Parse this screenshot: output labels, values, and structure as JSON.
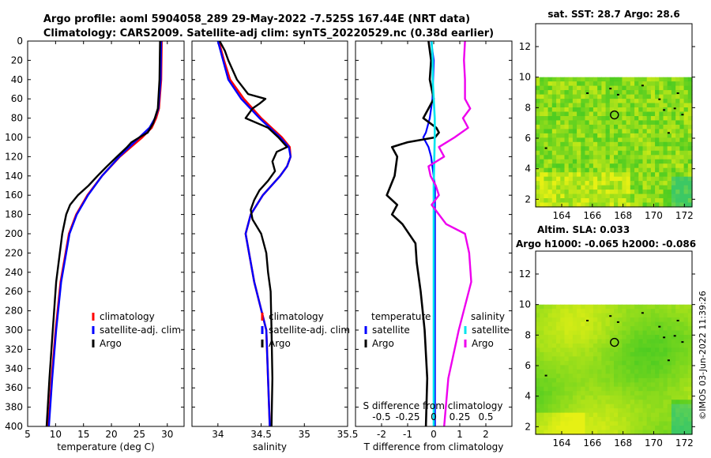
{
  "title": {
    "line1": "Argo profile: aoml 5904058_289 29-May-2022 -7.525S 167.44E (NRT data)",
    "line2": "Climatology: CARS2009. Satellite-adj clim: synTS_20220529.nc (0.38d earlier)"
  },
  "watermark": "©IMOS 03-Jun-2022 11:39:26",
  "colors": {
    "climatology": "#ff0000",
    "satellite": "#0000ff",
    "argo": "#000000",
    "sat_salinity": "#00e5ee",
    "argo_salinity": "#ee00ee"
  },
  "chart_data": [
    {
      "type": "line",
      "id": "temperature",
      "xlabel": "temperature (deg C)",
      "ylabel": "",
      "xlim": [
        5,
        33
      ],
      "ylim": [
        400,
        0
      ],
      "xticks": [
        "5",
        "10",
        "15",
        "20",
        "25",
        "30"
      ],
      "xtick_values": [
        5,
        10,
        15,
        20,
        25,
        30
      ],
      "yticks": [
        "0",
        "20",
        "40",
        "60",
        "80",
        "100",
        "120",
        "140",
        "160",
        "180",
        "200",
        "220",
        "240",
        "260",
        "280",
        "300",
        "320",
        "340",
        "360",
        "380",
        "400"
      ],
      "ytick_values": [
        0,
        20,
        40,
        60,
        80,
        100,
        120,
        140,
        160,
        180,
        200,
        220,
        240,
        260,
        280,
        300,
        320,
        340,
        360,
        380,
        400
      ],
      "legend": [
        "climatology",
        "satellite-adj. clim",
        "Argo"
      ],
      "series": [
        {
          "name": "climatology",
          "depth": [
            0,
            40,
            70,
            80,
            90,
            100,
            110,
            120,
            140,
            160,
            180,
            200,
            250,
            300,
            350,
            400
          ],
          "values": [
            29.0,
            28.9,
            28.5,
            28.0,
            27.2,
            25.5,
            23.5,
            21.5,
            18.3,
            15.7,
            13.7,
            12.4,
            10.9,
            10.0,
            9.3,
            8.7
          ]
        },
        {
          "name": "satellite-adj. clim",
          "depth": [
            0,
            40,
            70,
            80,
            90,
            100,
            110,
            120,
            140,
            160,
            180,
            200,
            250,
            300,
            350,
            400
          ],
          "values": [
            28.9,
            28.8,
            28.4,
            27.8,
            26.8,
            25.0,
            23.2,
            21.4,
            18.3,
            15.8,
            13.8,
            12.5,
            11.0,
            10.1,
            9.4,
            8.8
          ]
        },
        {
          "name": "Argo",
          "depth": [
            0,
            40,
            70,
            85,
            95,
            100,
            105,
            110,
            120,
            130,
            140,
            150,
            160,
            170,
            180,
            200,
            250,
            300,
            350,
            400
          ],
          "values": [
            28.7,
            28.6,
            28.3,
            27.5,
            26.5,
            25.0,
            23.6,
            22.8,
            21.0,
            19.2,
            17.5,
            15.9,
            14.0,
            12.6,
            11.9,
            11.2,
            10.1,
            9.5,
            8.9,
            8.4
          ]
        }
      ]
    },
    {
      "type": "line",
      "id": "salinity",
      "xlabel": "salinity",
      "ylabel": "",
      "xlim": [
        33.7,
        35.5
      ],
      "ylim": [
        400,
        0
      ],
      "xticks": [
        "34",
        "34.5",
        "35",
        "35.5"
      ],
      "xtick_values": [
        34,
        34.5,
        35,
        35.5
      ],
      "legend": [
        "climatology",
        "satellite-adj. clim",
        "Argo"
      ],
      "series": [
        {
          "name": "climatology",
          "depth": [
            0,
            10,
            20,
            40,
            60,
            80,
            90,
            100,
            110,
            120,
            130,
            140,
            160,
            180,
            200,
            250,
            300,
            400
          ],
          "values": [
            34.01,
            34.04,
            34.07,
            34.14,
            34.3,
            34.5,
            34.62,
            34.74,
            34.83,
            34.84,
            34.8,
            34.72,
            34.52,
            34.38,
            34.32,
            34.42,
            34.56,
            34.6
          ]
        },
        {
          "name": "satellite-adj. clim",
          "depth": [
            0,
            10,
            20,
            40,
            60,
            80,
            90,
            100,
            110,
            120,
            130,
            140,
            160,
            180,
            200,
            250,
            300,
            400
          ],
          "values": [
            34.0,
            34.03,
            34.06,
            34.12,
            34.27,
            34.48,
            34.6,
            34.72,
            34.82,
            34.84,
            34.8,
            34.72,
            34.52,
            34.38,
            34.32,
            34.42,
            34.56,
            34.6
          ]
        },
        {
          "name": "Argo",
          "depth": [
            0,
            10,
            20,
            40,
            55,
            60,
            65,
            70,
            80,
            90,
            100,
            110,
            115,
            125,
            135,
            145,
            155,
            165,
            175,
            185,
            200,
            220,
            240,
            260,
            300,
            350,
            400
          ],
          "values": [
            34.02,
            34.08,
            34.12,
            34.22,
            34.35,
            34.55,
            34.48,
            34.4,
            34.32,
            34.58,
            34.7,
            34.8,
            34.68,
            34.63,
            34.66,
            34.58,
            34.48,
            34.42,
            34.38,
            34.4,
            34.5,
            34.56,
            34.58,
            34.61,
            34.62,
            34.63,
            34.62
          ]
        }
      ]
    },
    {
      "type": "line",
      "id": "difference",
      "xlabel": "T difference from climatology",
      "xlabel_top": "S difference from climatology",
      "xlim": [
        -3,
        3
      ],
      "ylim": [
        400,
        0
      ],
      "xticks": [
        "-2",
        "-1",
        "0",
        "1",
        "2"
      ],
      "xtick_values": [
        -2,
        -1,
        0,
        1,
        2
      ],
      "xticks_top": [
        "-0.5",
        "-0.25",
        "0",
        "0.25",
        "0.5"
      ],
      "legend_left_title": "temperature",
      "legend_right_title": "salinity",
      "legend_left": [
        "satellite",
        "Argo"
      ],
      "legend_right": [
        "satellite",
        "Argo"
      ],
      "series": [
        {
          "name": "T satellite",
          "depth": [
            0,
            20,
            60,
            80,
            95,
            100,
            110,
            120,
            150,
            200,
            300,
            400
          ],
          "values": [
            -0.1,
            0.0,
            -0.05,
            -0.15,
            -0.3,
            -0.4,
            -0.2,
            -0.1,
            0.05,
            0.05,
            0.05,
            0.05
          ]
        },
        {
          "name": "T Argo",
          "depth": [
            0,
            20,
            40,
            60,
            80,
            90,
            95,
            100,
            105,
            110,
            120,
            140,
            160,
            170,
            180,
            190,
            210,
            230,
            260,
            300,
            350,
            400
          ],
          "values": [
            -0.2,
            -0.1,
            -0.15,
            0.0,
            -0.4,
            0.1,
            0.2,
            0.05,
            -1.0,
            -1.6,
            -1.4,
            -1.5,
            -1.8,
            -1.4,
            -1.6,
            -1.2,
            -0.7,
            -0.65,
            -0.5,
            -0.35,
            -0.25,
            -0.3
          ]
        },
        {
          "name": "S satellite",
          "depth": [
            0,
            20,
            40,
            60,
            80,
            100,
            150,
            200,
            300,
            400
          ],
          "values": [
            -0.02,
            -0.01,
            -0.01,
            0.0,
            0.01,
            0.01,
            0.0,
            0.0,
            0.0,
            0.0
          ]
        },
        {
          "name": "S Argo",
          "depth": [
            0,
            20,
            40,
            60,
            70,
            80,
            90,
            100,
            110,
            120,
            130,
            140,
            150,
            160,
            170,
            180,
            190,
            200,
            220,
            250,
            300,
            350,
            400
          ],
          "values": [
            0.3,
            0.29,
            0.3,
            0.3,
            0.35,
            0.28,
            0.33,
            0.2,
            0.05,
            0.1,
            -0.05,
            -0.03,
            0.02,
            0.05,
            -0.02,
            0.05,
            0.12,
            0.3,
            0.34,
            0.36,
            0.24,
            0.14,
            0.1
          ]
        }
      ]
    },
    {
      "type": "heatmap",
      "id": "sst_map",
      "title": "sat. SST: 28.7 Argo: 28.6",
      "xlim": [
        162.3,
        172.5
      ],
      "ylim": [
        1.5,
        13.5
      ],
      "xticks": [
        "164",
        "166",
        "168",
        "170",
        "172"
      ],
      "xtick_values": [
        164,
        166,
        168,
        170,
        172
      ],
      "yticks": [
        "2",
        "4",
        "6",
        "8",
        "10",
        "12"
      ],
      "ytick_values": [
        2,
        4,
        6,
        8,
        10,
        12
      ],
      "data_top": 10,
      "argo_position": [
        167.44,
        7.525
      ]
    },
    {
      "type": "heatmap",
      "id": "sla_map",
      "title_line1": "Altim. SLA: 0.033",
      "title_line2": "Argo h1000: -0.065 h2000: -0.086",
      "xlim": [
        162.3,
        172.5
      ],
      "ylim": [
        1.5,
        13.5
      ],
      "xticks": [
        "164",
        "166",
        "168",
        "170",
        "172"
      ],
      "xtick_values": [
        164,
        166,
        168,
        170,
        172
      ],
      "yticks": [
        "2",
        "4",
        "6",
        "8",
        "10",
        "12"
      ],
      "ytick_values": [
        2,
        4,
        6,
        8,
        10,
        12
      ],
      "data_top": 10,
      "argo_position": [
        167.44,
        7.525
      ]
    }
  ]
}
